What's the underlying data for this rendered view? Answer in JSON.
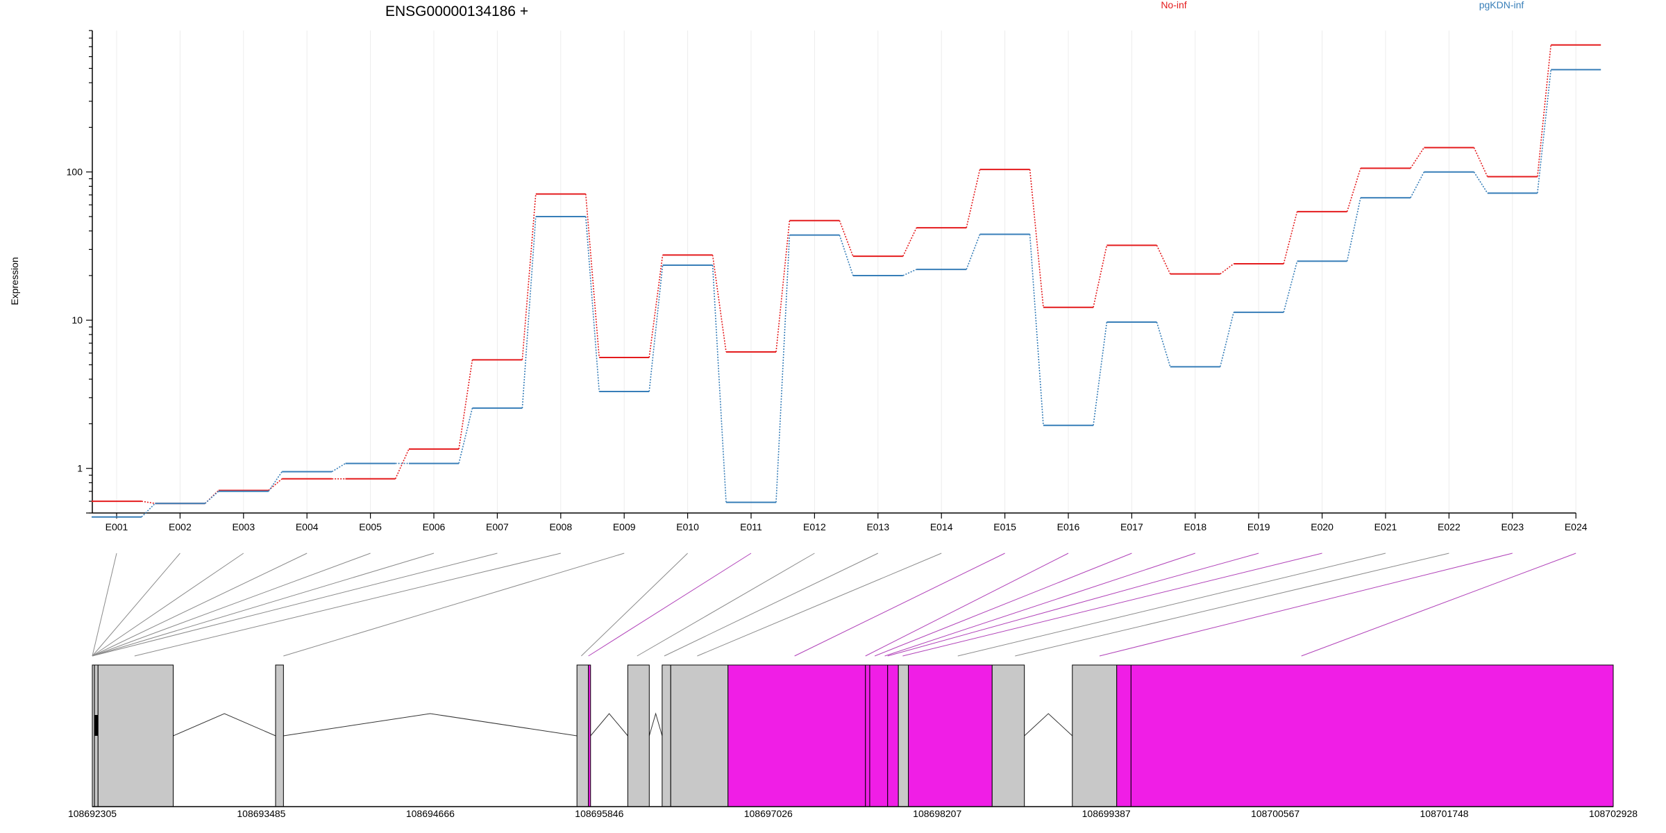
{
  "chart_data": {
    "type": "line",
    "title": "ENSG00000134186 +",
    "ylabel": "Expression",
    "xlabel": "",
    "y_scale": "log",
    "y_ticks": [
      1,
      10,
      100
    ],
    "ylim": [
      0.5,
      900
    ],
    "grid": "vertical",
    "legend_placement": "top",
    "categories": [
      "E001",
      "E002",
      "E003",
      "E004",
      "E005",
      "E006",
      "E007",
      "E008",
      "E009",
      "E010",
      "E011",
      "E012",
      "E013",
      "E014",
      "E015",
      "E016",
      "E017",
      "E018",
      "E019",
      "E020",
      "E021",
      "E022",
      "E023",
      "E024"
    ],
    "series": [
      {
        "name": "No-inf",
        "color": "#e41a1c",
        "values": [
          0.6,
          0.58,
          0.71,
          0.85,
          0.85,
          1.35,
          5.4,
          71,
          5.6,
          27.5,
          6.1,
          47,
          27,
          42,
          104,
          12.2,
          32,
          20.5,
          24,
          54,
          106,
          146,
          93,
          720
        ]
      },
      {
        "name": "pgKDN-inf",
        "color": "#377eb8",
        "values": [
          0.47,
          0.58,
          0.7,
          0.95,
          1.08,
          1.08,
          2.55,
          50,
          3.3,
          23.5,
          0.59,
          37.5,
          20,
          22,
          38,
          1.95,
          9.7,
          4.85,
          11.3,
          25,
          67,
          100,
          72,
          490
        ]
      }
    ],
    "exon_colors": [
      "#c8c8c8",
      "#c8c8c8",
      "#c8c8c8",
      "#c8c8c8",
      "#c8c8c8",
      "#c8c8c8",
      "#c8c8c8",
      "#c8c8c8",
      "#c8c8c8",
      "#c8c8c8",
      "#f01ee6",
      "#c8c8c8",
      "#c8c8c8",
      "#c8c8c8",
      "#f01ee6",
      "#f01ee6",
      "#f01ee6",
      "#f01ee6",
      "#f01ee6",
      "#f01ee6",
      "#c8c8c8",
      "#c8c8c8",
      "#f01ee6",
      "#f01ee6"
    ],
    "gene_model": {
      "genomic_range": [
        108692305,
        108702928
      ],
      "axis_ticks": [
        "108692305",
        "108693485",
        "108694666",
        "108695846",
        "108697026",
        "108698207",
        "108699387",
        "108700567",
        "108701748",
        "108702928"
      ],
      "exons": [
        {
          "start": 108692305,
          "end": 108692320,
          "color": "#c8c8c8"
        },
        {
          "start": 108692320,
          "end": 108692345,
          "color": "#c8c8c8"
        },
        {
          "start": 108692345,
          "end": 108692870,
          "color": "#c8c8c8"
        },
        {
          "start": 108693585,
          "end": 108693640,
          "color": "#c8c8c8"
        },
        {
          "start": 108695690,
          "end": 108695770,
          "color": "#c8c8c8"
        },
        {
          "start": 108695770,
          "end": 108695785,
          "color": "#f01ee6"
        },
        {
          "start": 108696045,
          "end": 108696195,
          "color": "#c8c8c8"
        },
        {
          "start": 108696285,
          "end": 108696345,
          "color": "#c8c8c8"
        },
        {
          "start": 108696345,
          "end": 108696745,
          "color": "#c8c8c8"
        },
        {
          "start": 108696745,
          "end": 108697705,
          "color": "#f01ee6"
        },
        {
          "start": 108697705,
          "end": 108697735,
          "color": "#f01ee6"
        },
        {
          "start": 108697735,
          "end": 108697860,
          "color": "#f01ee6"
        },
        {
          "start": 108697860,
          "end": 108697935,
          "color": "#f01ee6"
        },
        {
          "start": 108697935,
          "end": 108698005,
          "color": "#c8c8c8"
        },
        {
          "start": 108698005,
          "end": 108698590,
          "color": "#f01ee6"
        },
        {
          "start": 108698590,
          "end": 108698815,
          "color": "#c8c8c8"
        },
        {
          "start": 108699150,
          "end": 108699460,
          "color": "#c8c8c8"
        },
        {
          "start": 108699460,
          "end": 108699560,
          "color": "#f01ee6"
        },
        {
          "start": 108699560,
          "end": 108702928,
          "color": "#f01ee6"
        }
      ],
      "introns": [
        [
          108692870,
          108693585
        ],
        [
          108693640,
          108695690
        ],
        [
          108695785,
          108696045
        ],
        [
          108696195,
          108696285
        ],
        [
          108698815,
          108699150
        ]
      ],
      "exon_link_positions": [
        108692305,
        108692305,
        108692305,
        108692305,
        108692305,
        108692305,
        108692305,
        108692600,
        108693640,
        108695720,
        108695770,
        108696110,
        108696300,
        108696530,
        108697210,
        108697705,
        108697770,
        108697840,
        108697860,
        108697965,
        108698350,
        108698750,
        108699340,
        108700750
      ]
    }
  }
}
